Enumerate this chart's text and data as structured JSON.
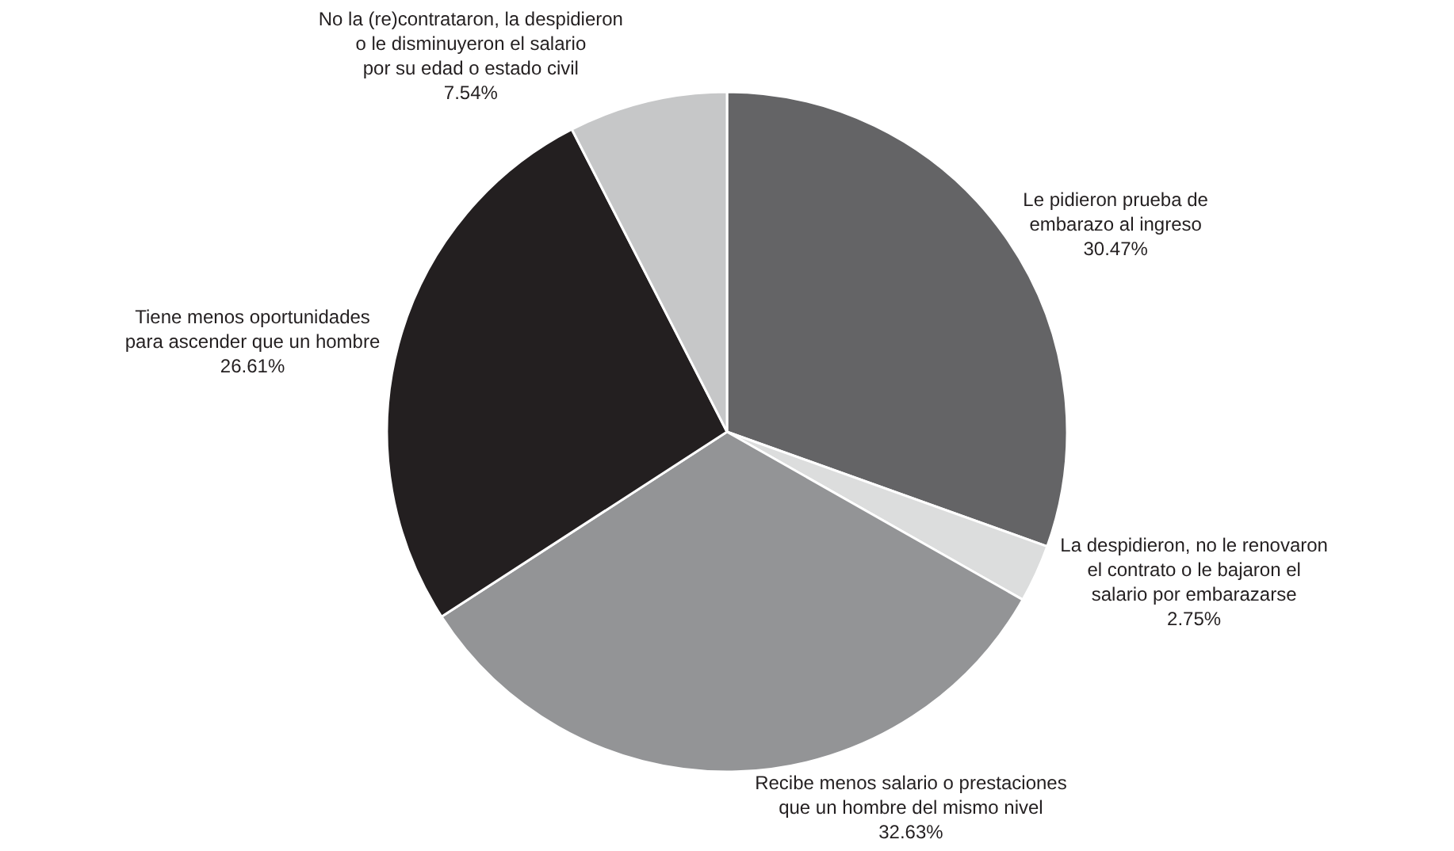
{
  "chart_data": {
    "type": "pie",
    "categories": [
      "Le pidieron prueba de\nembarazo al ingreso",
      "La despidieron, no le renovaron\nel contrato o le bajaron el\nsalario por embarazarse",
      "Recibe menos salario o prestaciones\nque un hombre del mismo nivel",
      "Tiene menos oportunidades\npara ascender que un hombre",
      "No la (re)contrataron, la despidieron\no le disminuyeron el salario\npor su edad o estado civil"
    ],
    "values": [
      30.47,
      2.75,
      32.63,
      26.61,
      7.54
    ],
    "value_labels": [
      "30.47%",
      "2.75%",
      "32.63%",
      "26.61%",
      "7.54%"
    ],
    "colors": [
      "#646466",
      "#dcdddd",
      "#939496",
      "#231f20",
      "#c6c7c8"
    ]
  }
}
